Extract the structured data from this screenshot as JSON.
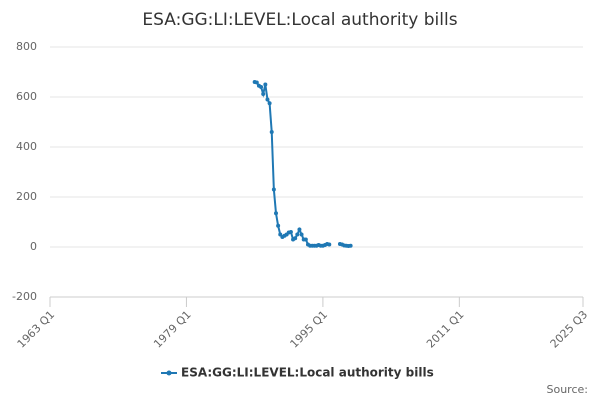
{
  "chart_data": {
    "type": "line",
    "title": "ESA:GG:LI:LEVEL:Local authority bills",
    "source": "Source:",
    "x": [
      "1987 Q1",
      "1987 Q2",
      "1987 Q3",
      "1987 Q4",
      "1988 Q1",
      "1988 Q2",
      "1988 Q3",
      "1988 Q4",
      "1989 Q1",
      "1989 Q2",
      "1989 Q3",
      "1989 Q4",
      "1990 Q1",
      "1990 Q2",
      "1990 Q3",
      "1990 Q4",
      "1991 Q1",
      "1991 Q2",
      "1991 Q3",
      "1991 Q4",
      "1992 Q1",
      "1992 Q2",
      "1992 Q3",
      "1992 Q4",
      "1993 Q1",
      "1993 Q2",
      "1993 Q3",
      "1993 Q4",
      "1994 Q1",
      "1994 Q2",
      "1994 Q3",
      "1994 Q4",
      "1995 Q1",
      "1995 Q2",
      "1995 Q3",
      "1995 Q4",
      "1996 Q1",
      "1996 Q2",
      "1996 Q3",
      "1996 Q4",
      "1997 Q1",
      "1997 Q2",
      "1997 Q3",
      "1997 Q4",
      "1998 Q1",
      "1998 Q2"
    ],
    "series": [
      {
        "name": "ESA:GG:LI:LEVEL:Local authority bills",
        "color": "#1f78b4",
        "values": [
          660,
          658,
          645,
          640,
          612,
          650,
          590,
          575,
          460,
          230,
          135,
          85,
          50,
          40,
          45,
          50,
          58,
          60,
          30,
          35,
          50,
          70,
          50,
          30,
          30,
          10,
          5,
          5,
          5,
          5,
          8,
          5,
          5,
          8,
          12,
          10,
          null,
          null,
          null,
          null,
          12,
          10,
          6,
          5,
          4,
          5
        ]
      }
    ],
    "xlim": [
      "1963 Q1",
      "2025 Q3"
    ],
    "xticks": [
      "1963 Q1",
      "1979 Q1",
      "1995 Q1",
      "2011 Q1",
      "2025 Q3"
    ],
    "ylim": [
      -200,
      800
    ],
    "yticks": [
      -200,
      0,
      200,
      400,
      600,
      800
    ],
    "grid": true
  }
}
